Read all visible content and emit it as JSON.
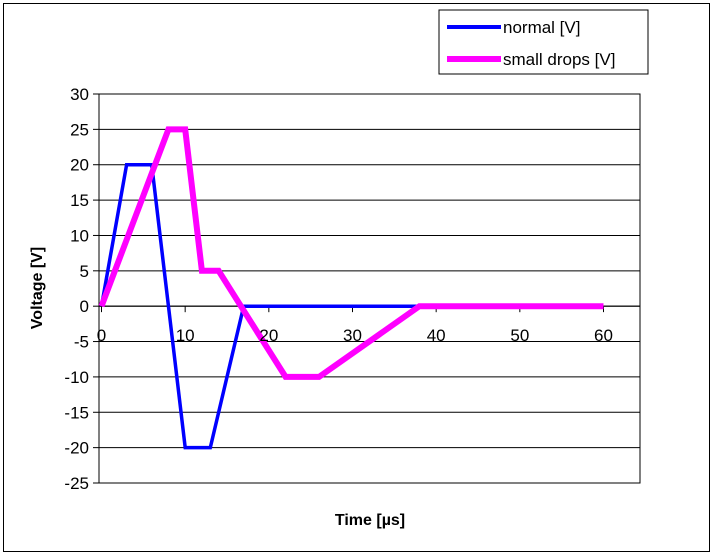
{
  "chart_data": {
    "type": "line",
    "title": "",
    "xlabel": "Time [µs]",
    "ylabel": "Voltage [V]",
    "xlim": [
      0,
      60
    ],
    "ylim": [
      -25,
      30
    ],
    "x_ticks": [
      0,
      10,
      20,
      30,
      40,
      50,
      60
    ],
    "y_ticks": [
      30,
      25,
      20,
      15,
      10,
      5,
      0,
      -5,
      -10,
      -15,
      -20,
      -25
    ],
    "grid": "horizontal",
    "legend_position": "top-right",
    "series": [
      {
        "name": "normal [V]",
        "color": "#0000ff",
        "x": [
          0,
          3,
          6,
          10,
          13,
          17,
          21,
          38
        ],
        "y": [
          0,
          20,
          20,
          -20,
          -20,
          0,
          0,
          0
        ]
      },
      {
        "name": "small drops [V]",
        "color": "#ff00ff",
        "x": [
          0,
          8,
          10,
          12,
          14,
          22,
          26,
          38,
          60
        ],
        "y": [
          0,
          25,
          25,
          5,
          5,
          -10,
          -10,
          0,
          0
        ]
      }
    ]
  }
}
